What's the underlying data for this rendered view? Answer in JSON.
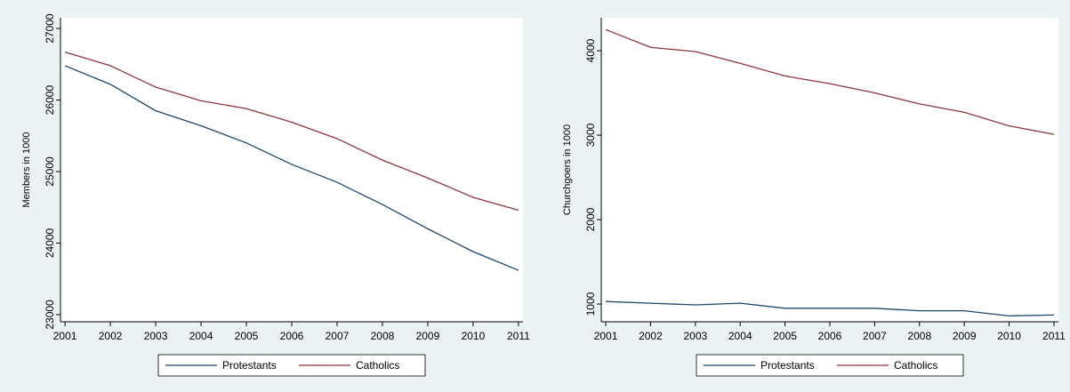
{
  "chart_data": [
    {
      "type": "line",
      "y_label": "Members in 1000",
      "x": [
        2001,
        2002,
        2003,
        2004,
        2005,
        2006,
        2007,
        2008,
        2009,
        2010,
        2011
      ],
      "xlim": [
        2000.9,
        2011.1
      ],
      "xticks": [
        2001,
        2002,
        2003,
        2004,
        2005,
        2006,
        2007,
        2008,
        2009,
        2010,
        2011
      ],
      "ylim": [
        22900,
        27150
      ],
      "yticks": [
        23000,
        24000,
        25000,
        26000,
        27000
      ],
      "series": [
        {
          "name": "Protestants",
          "color": "#1a476f",
          "values": [
            26480,
            26220,
            25850,
            25640,
            25400,
            25100,
            24850,
            24540,
            24200,
            23880,
            23620
          ]
        },
        {
          "name": "Catholics",
          "color": "#90353b",
          "values": [
            26670,
            26480,
            26180,
            25990,
            25880,
            25690,
            25460,
            25160,
            24910,
            24640,
            24460
          ]
        }
      ]
    },
    {
      "type": "line",
      "y_label": "Churchgoers in 1000",
      "x": [
        2001,
        2002,
        2003,
        2004,
        2005,
        2006,
        2007,
        2008,
        2009,
        2010,
        2011
      ],
      "xlim": [
        2000.9,
        2011.1
      ],
      "xticks": [
        2001,
        2002,
        2003,
        2004,
        2005,
        2006,
        2007,
        2008,
        2009,
        2010,
        2011
      ],
      "ylim": [
        790,
        4390
      ],
      "yticks": [
        1000,
        2000,
        3000,
        4000
      ],
      "series": [
        {
          "name": "Protestants",
          "color": "#1a476f",
          "values": [
            1030,
            1010,
            990,
            1010,
            950,
            950,
            950,
            920,
            920,
            860,
            870
          ]
        },
        {
          "name": "Catholics",
          "color": "#90353b",
          "values": [
            4250,
            4040,
            3990,
            3850,
            3700,
            3610,
            3500,
            3370,
            3270,
            3110,
            3010
          ]
        }
      ]
    }
  ]
}
